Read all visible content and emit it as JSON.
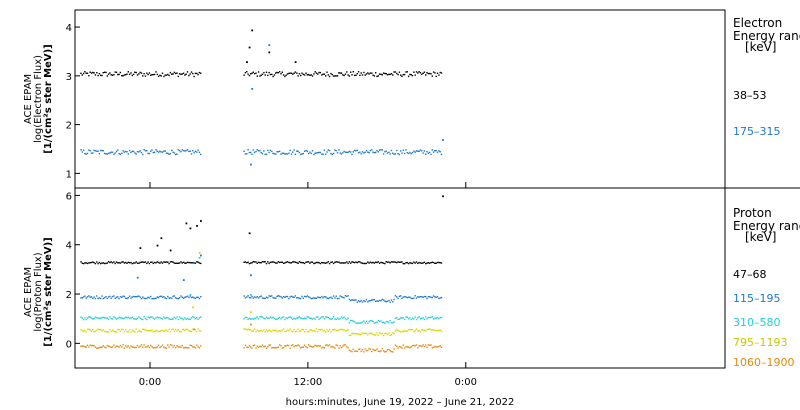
{
  "chart_data": {
    "type": "scatter",
    "xlabel": "hours:minutes, June 19, 2022 – June 21, 2022",
    "x_ticks": [
      "0:00",
      "12:00",
      "0:00"
    ],
    "panels": [
      {
        "id": "electron",
        "ylabel_lines": [
          "ACE EPAM",
          "log(Electron Flux)",
          "[1/(cm²s ster MeV)]"
        ],
        "ylim": [
          0.7,
          4.35
        ],
        "y_ticks": [
          "1",
          "2",
          "3",
          "4"
        ],
        "legend_title": [
          "Electron",
          "Energy range",
          "[keV]"
        ],
        "series": [
          {
            "name": "38–53",
            "color": "#000000",
            "base": 3.05,
            "noise": 0.05,
            "spikes": [
              [
                7.3,
                3.3
              ],
              [
                7.5,
                3.6
              ],
              [
                7.7,
                3.95
              ],
              [
                9.0,
                3.5
              ],
              [
                11.0,
                3.3
              ]
            ]
          },
          {
            "name": "175–315",
            "color": "#1f78c8",
            "base": 1.45,
            "noise": 0.05,
            "spikes": [
              [
                7.6,
                1.2
              ],
              [
                7.7,
                2.75
              ],
              [
                9.0,
                3.65
              ],
              [
                22.2,
                1.7
              ]
            ]
          }
        ]
      },
      {
        "id": "proton",
        "ylabel_lines": [
          "ACE EPAM",
          "log(Proton Flux)",
          "[1/(cm²s ster MeV)]"
        ],
        "ylim": [
          -1.0,
          6.3
        ],
        "y_ticks": [
          "0",
          "2",
          "4",
          "6"
        ],
        "legend_title": [
          "Proton",
          "Energy range",
          "[keV]"
        ],
        "series": [
          {
            "name": "47–68",
            "color": "#000000",
            "base": 3.3,
            "noise": 0.04,
            "spikes": [
              [
                -0.8,
                3.9
              ],
              [
                0.5,
                4.0
              ],
              [
                0.8,
                4.3
              ],
              [
                1.5,
                3.8
              ],
              [
                2.7,
                4.9
              ],
              [
                3.0,
                4.7
              ],
              [
                3.5,
                4.8
              ],
              [
                3.8,
                5.0
              ],
              [
                7.5,
                4.5
              ],
              [
                22.2,
                6.0
              ]
            ]
          },
          {
            "name": "115–195",
            "color": "#1f78c8",
            "base": 1.9,
            "noise": 0.06,
            "spikes": [
              [
                -1.0,
                2.7
              ],
              [
                2.5,
                2.6
              ],
              [
                3.3,
                3.3
              ],
              [
                3.8,
                3.6
              ],
              [
                7.6,
                2.8
              ]
            ]
          },
          {
            "name": "310–580",
            "color": "#20d0d8",
            "base": 1.05,
            "noise": 0.06,
            "spikes": [
              [
                3.0,
                2.0
              ],
              [
                3.7,
                3.5
              ],
              [
                7.6,
                2.0
              ]
            ]
          },
          {
            "name": "795–1193",
            "color": "#d8d800",
            "base": 0.55,
            "noise": 0.06,
            "spikes": [
              [
                3.2,
                1.5
              ],
              [
                3.7,
                3.7
              ],
              [
                7.6,
                1.3
              ]
            ]
          },
          {
            "name": "1060–1900",
            "color": "#e08c10",
            "base": -0.1,
            "noise": 0.07,
            "spikes": [
              [
                3.3,
                0.6
              ],
              [
                7.6,
                0.8
              ]
            ]
          }
        ]
      }
    ]
  }
}
